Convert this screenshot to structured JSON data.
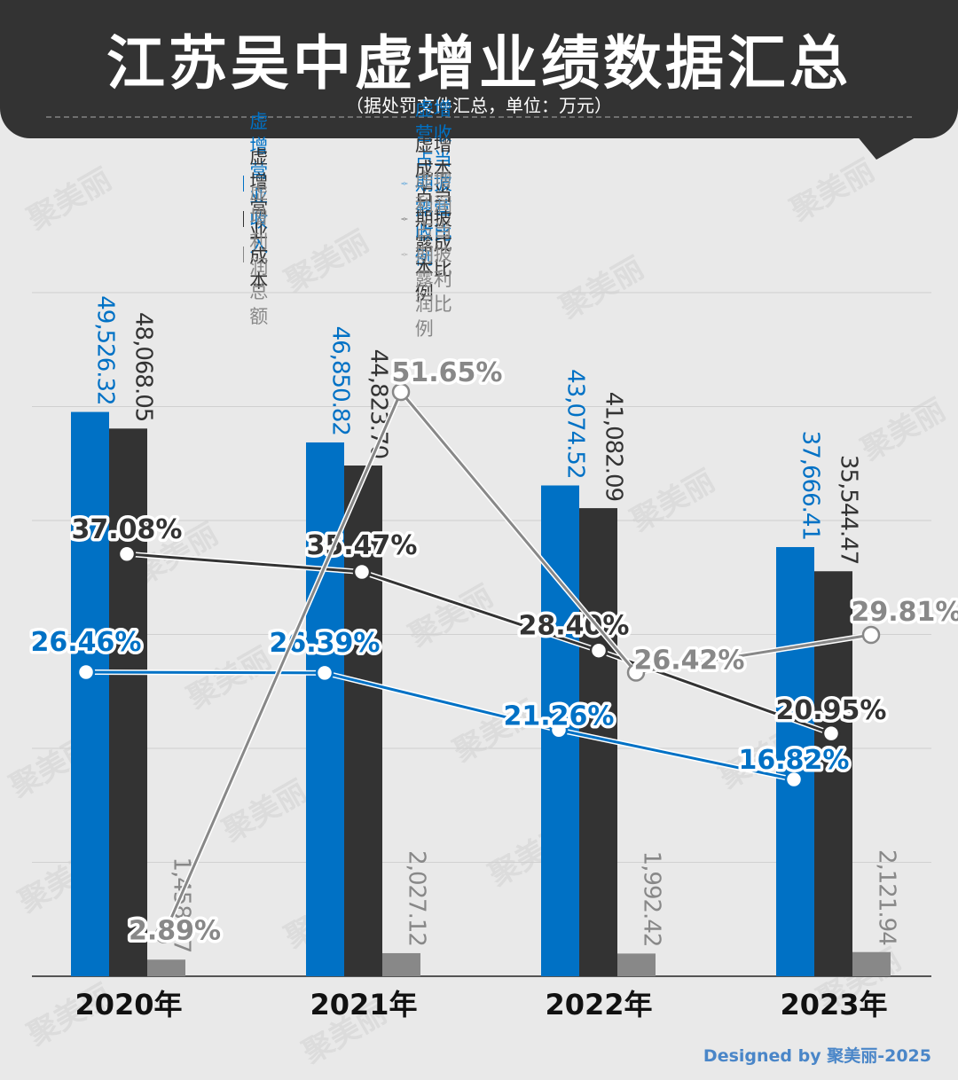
{
  "header": {
    "title": "江苏吴中虚增业绩数据汇总",
    "subtitle": "（据处罚文件汇总，单位：万元）"
  },
  "legend": {
    "bar_items": [
      {
        "label": "虚增营业收入",
        "color": "#0071c5"
      },
      {
        "label": "虚增营业成本",
        "color": "#333333"
      },
      {
        "label": "虚增利润总额",
        "color": "#888888"
      }
    ],
    "line_items": [
      {
        "label": "虚增营收占当期披露营收比例",
        "color": "#0071c5"
      },
      {
        "label": "虚增成本占当期披露成本比例",
        "color": "#333333"
      },
      {
        "label": "虚增利润占当期披露利润比例",
        "color": "#888888"
      }
    ]
  },
  "footer": {
    "credit": "Designed by 聚美丽-2025"
  },
  "watermark": "聚美丽",
  "chart_data": {
    "type": "bar",
    "categories": [
      "2020年",
      "2021年",
      "2022年",
      "2023年"
    ],
    "series": [
      {
        "name": "虚增营业收入",
        "color": "#0071c5",
        "values": [
          49526.32,
          46850.82,
          43074.52,
          37666.41
        ],
        "labels": [
          "49,526.32",
          "46,850.82",
          "43,074.52",
          "37,666.41"
        ]
      },
      {
        "name": "虚增营业成本",
        "color": "#333333",
        "values": [
          48068.05,
          44823.7,
          41082.09,
          35544.47
        ],
        "labels": [
          "48,068.05",
          "44,823.70",
          "41,082.09",
          "35,544.47"
        ]
      },
      {
        "name": "虚增利润总额",
        "color": "#888888",
        "values": [
          1458.27,
          2027.12,
          1992.42,
          2121.94
        ],
        "labels": [
          "1,458.27",
          "2,027.12",
          "1,992.42",
          "2,121.94"
        ]
      }
    ],
    "line_series": [
      {
        "name": "虚增营收占当期披露营收比例",
        "color": "#0071c5",
        "values": [
          26.46,
          26.39,
          21.26,
          16.82
        ],
        "labels": [
          "26.46%",
          "26.39%",
          "21.26%",
          "16.82%"
        ]
      },
      {
        "name": "虚增成本占当期披露成本比例",
        "color": "#333333",
        "values": [
          37.08,
          35.47,
          28.4,
          20.95
        ],
        "labels": [
          "37.08%",
          "35.47%",
          "28.40%",
          "20.95%"
        ]
      },
      {
        "name": "虚增利润占当期披露利润比例",
        "color": "#888888",
        "values": [
          2.89,
          51.65,
          26.42,
          29.81
        ],
        "labels": [
          "2.89%",
          "51.65%",
          "26.42%",
          "29.81%"
        ]
      }
    ],
    "grid": true,
    "legend_position": "top"
  }
}
